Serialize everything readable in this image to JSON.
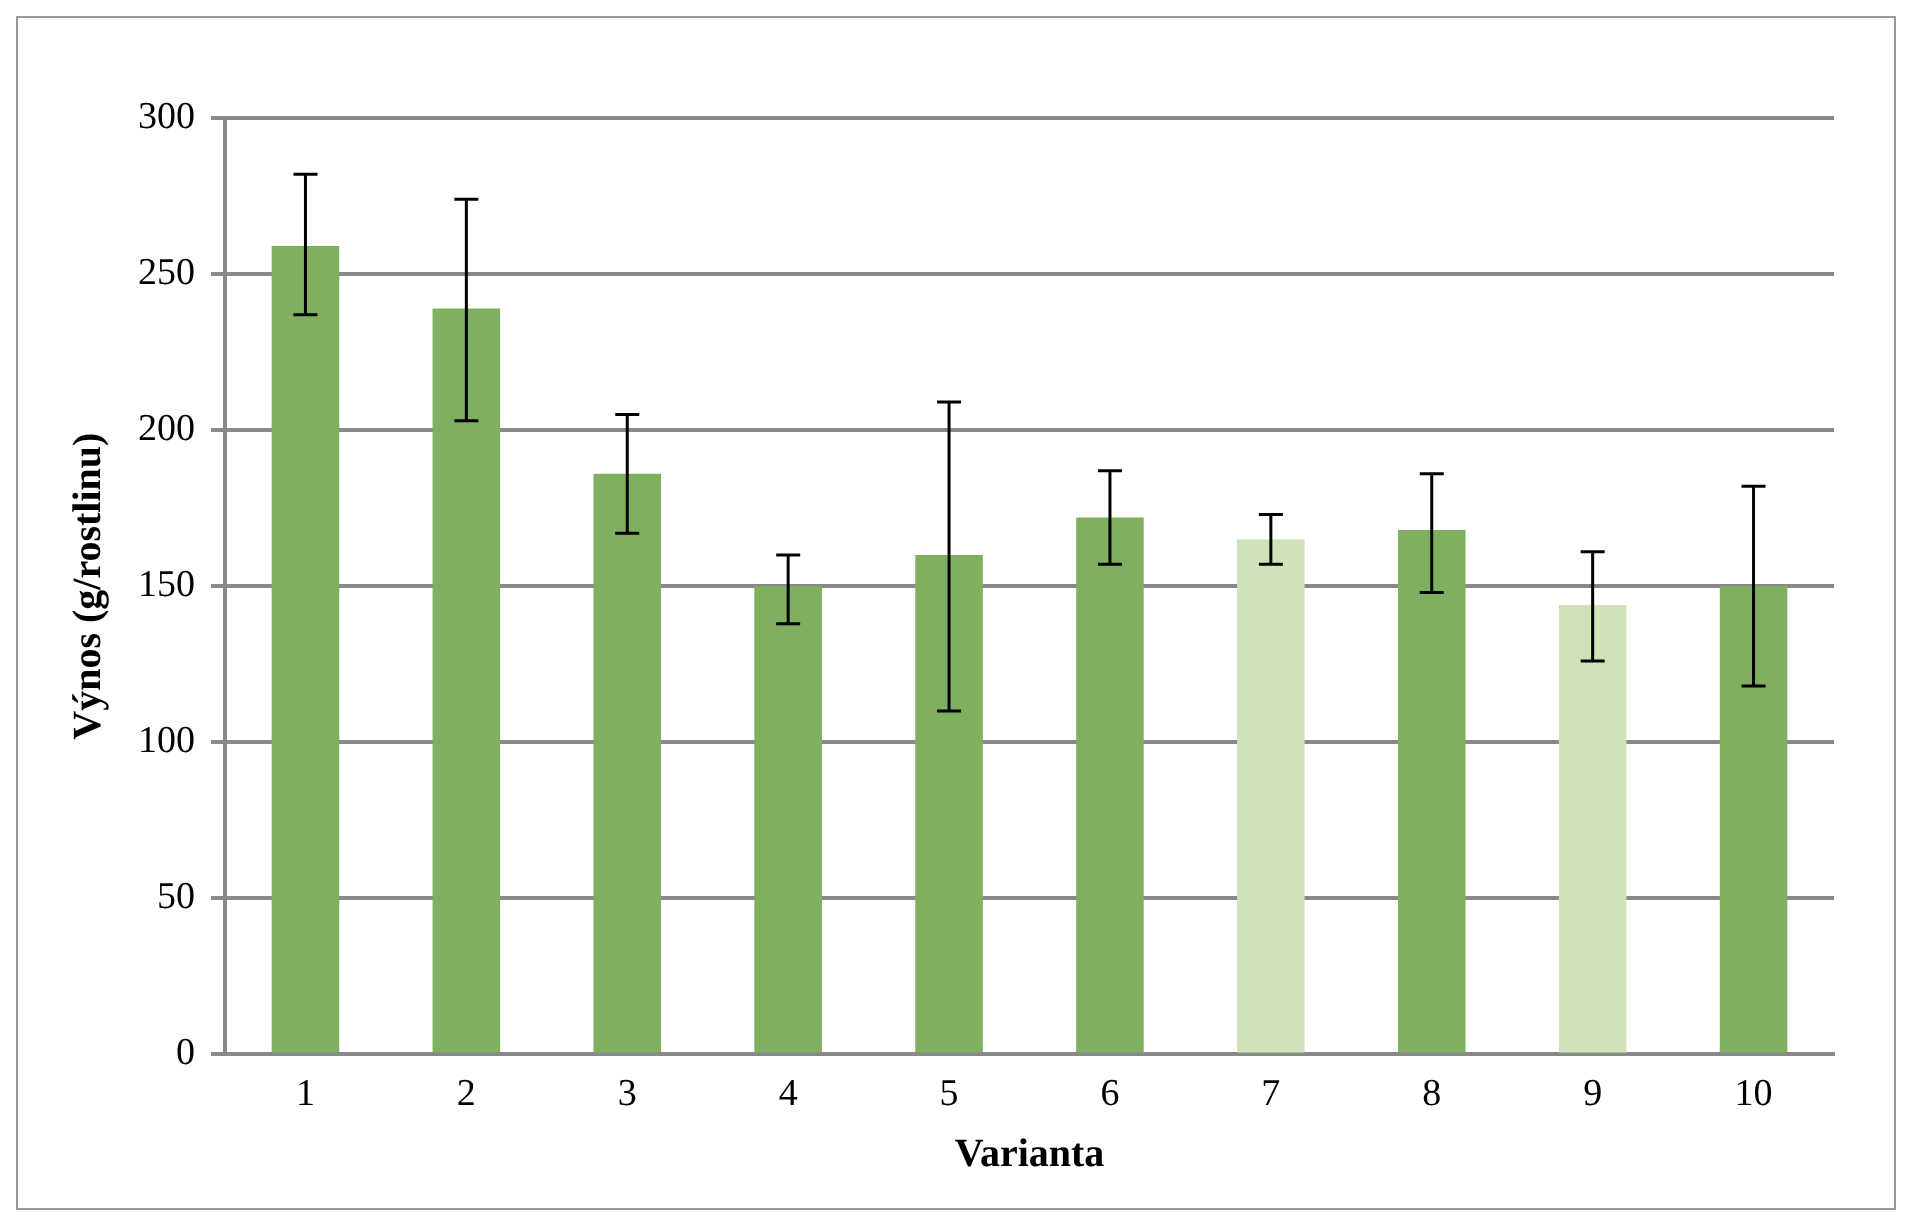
{
  "chart_data": {
    "type": "bar",
    "xlabel": "Varianta",
    "ylabel": "Výnos (g/rostlinu)",
    "categories": [
      "1",
      "2",
      "3",
      "4",
      "5",
      "6",
      "7",
      "8",
      "9",
      "10"
    ],
    "values": [
      259,
      239,
      186,
      150,
      160,
      172,
      165,
      168,
      144,
      150
    ],
    "colors": [
      "#7fb060",
      "#7fb060",
      "#7fb060",
      "#7fb060",
      "#7fb060",
      "#7fb060",
      "#cfe2b8",
      "#7fb060",
      "#cfe2b8",
      "#7fb060"
    ],
    "errors": [
      [
        237,
        282
      ],
      [
        203,
        274
      ],
      [
        167,
        205
      ],
      [
        138,
        160
      ],
      [
        110,
        209
      ],
      [
        157,
        187
      ],
      [
        157,
        173
      ],
      [
        148,
        186
      ],
      [
        126,
        161
      ],
      [
        118,
        182
      ]
    ],
    "ylim": [
      0,
      300
    ],
    "yticks": [
      0,
      50,
      100,
      150,
      200,
      250,
      300
    ],
    "grid": "y"
  }
}
